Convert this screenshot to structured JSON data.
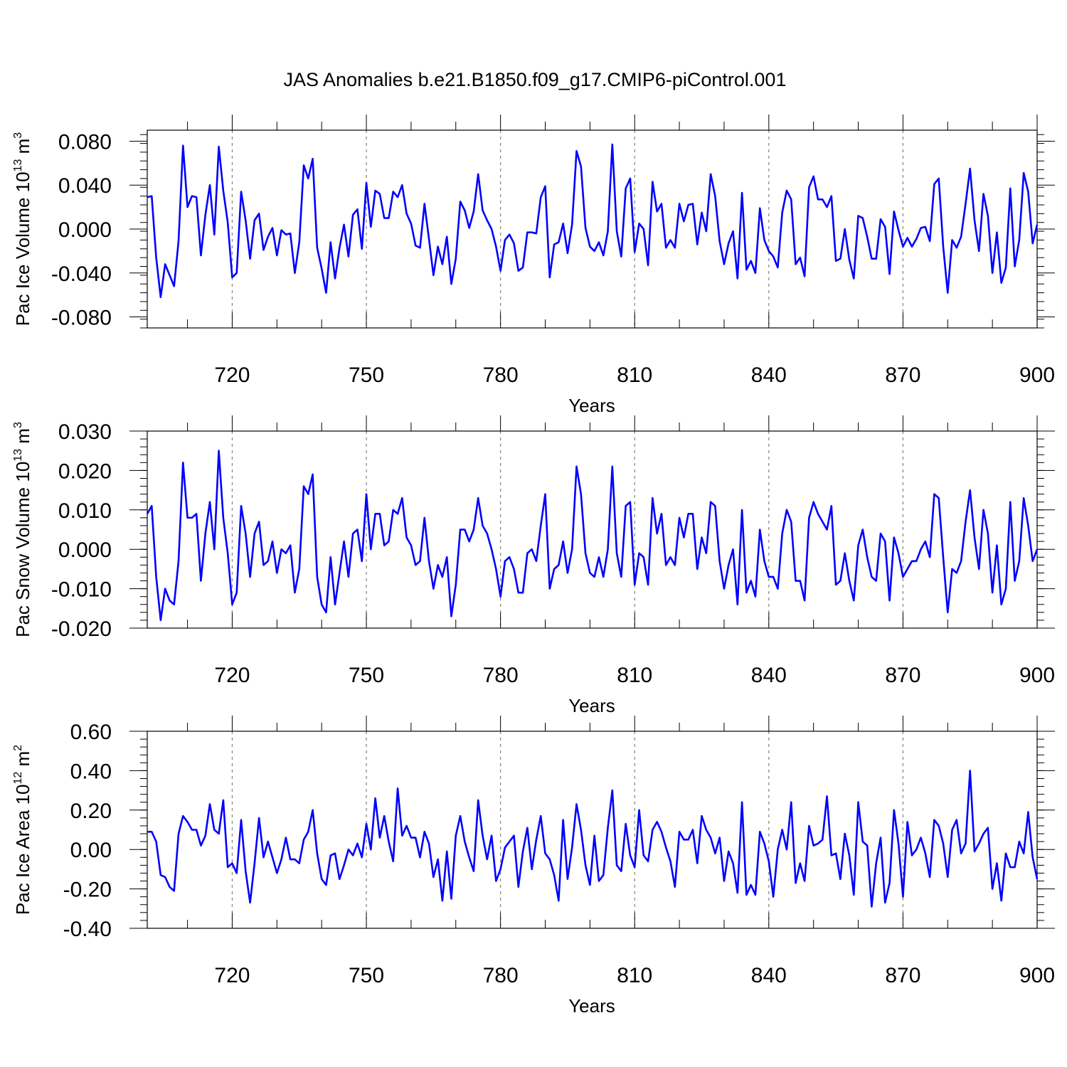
{
  "chart_data": {
    "type": "line",
    "title": "JAS Anomalies b.e21.B1850.f09_g17.CMIP6-piControl.001",
    "line_color": "#0000ff",
    "grid_color": "#808080",
    "xlim": [
      701,
      900
    ],
    "x_start": 701,
    "x_tick_values": [
      720,
      750,
      780,
      810,
      840,
      870,
      900
    ],
    "x_tick_labels": [
      "720",
      "750",
      "780",
      "810",
      "840",
      "870",
      "900"
    ],
    "dashed_gridlines_at": [
      720,
      750,
      780,
      810,
      840,
      870
    ],
    "panels": [
      {
        "name": "ice-volume",
        "ylabel_prefix": "Pac Ice Volume 10",
        "ylabel_exp": "13",
        "ylabel_unit": " m",
        "ylabel_unit_exp": "3",
        "xlabel": "Years",
        "ylim": [
          -0.09,
          0.09
        ],
        "y_tick_values": [
          -0.08,
          -0.04,
          0.0,
          0.04,
          0.08
        ],
        "y_tick_labels": [
          "-0.080",
          "-0.040",
          "0.000",
          "0.040",
          "0.080"
        ],
        "values": [
          0.029,
          0.03,
          -0.026,
          -0.062,
          -0.032,
          -0.042,
          -0.052,
          -0.011,
          0.076,
          0.02,
          0.03,
          0.029,
          -0.024,
          0.013,
          0.04,
          -0.005,
          0.075,
          0.035,
          0.006,
          -0.044,
          -0.04,
          0.034,
          0.008,
          -0.027,
          0.008,
          0.014,
          -0.019,
          -0.007,
          0.001,
          -0.024,
          -0.001,
          -0.005,
          -0.004,
          -0.04,
          -0.012,
          0.058,
          0.046,
          0.064,
          -0.017,
          -0.036,
          -0.058,
          -0.012,
          -0.045,
          -0.017,
          0.004,
          -0.025,
          0.013,
          0.018,
          -0.018,
          0.042,
          0.002,
          0.035,
          0.032,
          0.01,
          0.01,
          0.034,
          0.029,
          0.04,
          0.014,
          0.005,
          -0.015,
          -0.017,
          0.023,
          -0.009,
          -0.042,
          -0.016,
          -0.032,
          -0.007,
          -0.05,
          -0.027,
          0.025,
          0.017,
          0.001,
          0.016,
          0.05,
          0.017,
          0.008,
          0.0,
          -0.016,
          -0.038,
          -0.01,
          -0.005,
          -0.013,
          -0.038,
          -0.035,
          -0.003,
          -0.003,
          -0.004,
          0.029,
          0.039,
          -0.044,
          -0.014,
          -0.012,
          0.005,
          -0.022,
          0.004,
          0.071,
          0.057,
          0.001,
          -0.016,
          -0.02,
          -0.012,
          -0.024,
          -0.002,
          0.077,
          -0.002,
          -0.025,
          0.037,
          0.046,
          -0.021,
          0.005,
          0.0,
          -0.033,
          0.043,
          0.016,
          0.023,
          -0.017,
          -0.01,
          -0.017,
          0.023,
          0.007,
          0.022,
          0.023,
          -0.014,
          0.015,
          -0.002,
          0.05,
          0.03,
          -0.011,
          -0.032,
          -0.013,
          -0.002,
          -0.045,
          0.033,
          -0.037,
          -0.029,
          -0.04,
          0.019,
          -0.01,
          -0.02,
          -0.025,
          -0.035,
          0.015,
          0.035,
          0.027,
          -0.032,
          -0.026,
          -0.043,
          0.038,
          0.048,
          0.027,
          0.027,
          0.02,
          0.03,
          -0.029,
          -0.027,
          0.0,
          -0.028,
          -0.045,
          0.012,
          0.01,
          -0.007,
          -0.027,
          -0.027,
          0.009,
          0.002,
          -0.041,
          0.016,
          -0.001,
          -0.016,
          -0.008,
          -0.016,
          -0.009,
          0.001,
          0.002,
          -0.011,
          0.041,
          0.046,
          -0.016,
          -0.058,
          -0.01,
          -0.017,
          -0.007,
          0.023,
          0.055,
          0.008,
          -0.02,
          0.032,
          0.012,
          -0.04,
          -0.003,
          -0.049,
          -0.035,
          0.037,
          -0.034,
          -0.01,
          0.051,
          0.034,
          -0.013,
          0.004
        ]
      },
      {
        "name": "snow-volume",
        "ylabel_prefix": "Pac Snow Volume 10",
        "ylabel_exp": "13",
        "ylabel_unit": " m",
        "ylabel_unit_exp": "3",
        "xlabel": "Years",
        "ylim": [
          -0.02,
          0.03
        ],
        "y_tick_values": [
          -0.02,
          -0.01,
          0.0,
          0.01,
          0.02,
          0.03
        ],
        "y_tick_labels": [
          "-0.020",
          "-0.010",
          "0.000",
          "0.010",
          "0.020",
          "0.030"
        ],
        "values": [
          0.009,
          0.011,
          -0.007,
          -0.018,
          -0.01,
          -0.013,
          -0.014,
          -0.003,
          0.022,
          0.008,
          0.008,
          0.009,
          -0.008,
          0.004,
          0.012,
          0.0,
          0.025,
          0.008,
          -0.001,
          -0.014,
          -0.011,
          0.011,
          0.004,
          -0.007,
          0.004,
          0.007,
          -0.004,
          -0.003,
          0.002,
          -0.006,
          0.0,
          -0.001,
          0.001,
          -0.011,
          -0.005,
          0.016,
          0.014,
          0.019,
          -0.007,
          -0.014,
          -0.016,
          -0.002,
          -0.014,
          -0.006,
          0.002,
          -0.007,
          0.004,
          0.005,
          -0.003,
          0.014,
          0.0,
          0.009,
          0.009,
          0.001,
          0.002,
          0.01,
          0.009,
          0.013,
          0.003,
          0.001,
          -0.004,
          -0.003,
          0.008,
          -0.003,
          -0.01,
          -0.004,
          -0.007,
          -0.002,
          -0.017,
          -0.009,
          0.005,
          0.005,
          0.002,
          0.005,
          0.013,
          0.006,
          0.004,
          0.0,
          -0.005,
          -0.012,
          -0.003,
          -0.002,
          -0.005,
          -0.011,
          -0.011,
          -0.001,
          0.0,
          -0.003,
          0.006,
          0.014,
          -0.01,
          -0.005,
          -0.004,
          0.002,
          -0.006,
          0.0,
          0.021,
          0.014,
          -0.001,
          -0.006,
          -0.007,
          -0.002,
          -0.007,
          0.0,
          0.021,
          -0.001,
          -0.007,
          0.011,
          0.012,
          -0.009,
          -0.001,
          -0.002,
          -0.009,
          0.013,
          0.004,
          0.009,
          -0.004,
          -0.002,
          -0.004,
          0.008,
          0.003,
          0.009,
          0.009,
          -0.005,
          0.003,
          -0.001,
          0.012,
          0.011,
          -0.003,
          -0.01,
          -0.004,
          0.0,
          -0.014,
          0.01,
          -0.011,
          -0.008,
          -0.012,
          0.005,
          -0.003,
          -0.007,
          -0.007,
          -0.01,
          0.004,
          0.01,
          0.007,
          -0.008,
          -0.008,
          -0.013,
          0.008,
          0.012,
          0.009,
          0.007,
          0.005,
          0.011,
          -0.009,
          -0.008,
          -0.001,
          -0.008,
          -0.013,
          0.001,
          0.005,
          -0.002,
          -0.007,
          -0.008,
          0.004,
          0.002,
          -0.013,
          0.003,
          -0.001,
          -0.007,
          -0.005,
          -0.003,
          -0.003,
          0.0,
          0.002,
          -0.002,
          0.014,
          0.013,
          -0.002,
          -0.016,
          -0.005,
          -0.006,
          -0.003,
          0.007,
          0.015,
          0.003,
          -0.005,
          0.01,
          0.004,
          -0.011,
          0.001,
          -0.014,
          -0.01,
          0.012,
          -0.008,
          -0.003,
          0.013,
          0.006,
          -0.003,
          0.0
        ]
      },
      {
        "name": "ice-area",
        "ylabel_prefix": "Pac Ice Area 10",
        "ylabel_exp": "12",
        "ylabel_unit": " m",
        "ylabel_unit_exp": "2",
        "xlabel": "Years",
        "ylim": [
          -0.4,
          0.6
        ],
        "y_tick_values": [
          -0.4,
          -0.2,
          0.0,
          0.2,
          0.4,
          0.6
        ],
        "y_tick_labels": [
          "-0.40",
          "-0.20",
          "0.00",
          "0.20",
          "0.40",
          "0.60"
        ],
        "values": [
          0.09,
          0.09,
          0.04,
          -0.13,
          -0.14,
          -0.19,
          -0.21,
          0.08,
          0.17,
          0.14,
          0.1,
          0.1,
          0.02,
          0.07,
          0.23,
          0.1,
          0.08,
          0.25,
          -0.09,
          -0.07,
          -0.12,
          0.15,
          -0.11,
          -0.27,
          -0.07,
          0.16,
          -0.04,
          0.04,
          -0.04,
          -0.12,
          -0.05,
          0.06,
          -0.05,
          -0.05,
          -0.07,
          0.05,
          0.09,
          0.2,
          -0.02,
          -0.15,
          -0.18,
          -0.03,
          -0.02,
          -0.15,
          -0.08,
          0.0,
          -0.03,
          0.03,
          -0.04,
          0.13,
          0.0,
          0.26,
          0.06,
          0.17,
          0.04,
          -0.06,
          0.31,
          0.07,
          0.12,
          0.06,
          0.06,
          -0.04,
          0.09,
          0.03,
          -0.14,
          -0.05,
          -0.26,
          -0.01,
          -0.25,
          0.07,
          0.17,
          0.04,
          -0.04,
          -0.11,
          0.25,
          0.07,
          -0.05,
          0.07,
          -0.16,
          -0.1,
          0.01,
          0.04,
          0.07,
          -0.19,
          -0.01,
          0.11,
          -0.1,
          0.05,
          0.17,
          -0.02,
          -0.05,
          -0.13,
          -0.26,
          0.15,
          -0.15,
          0.01,
          0.23,
          0.1,
          -0.08,
          -0.18,
          0.07,
          -0.16,
          -0.13,
          0.11,
          0.3,
          -0.08,
          -0.11,
          0.13,
          -0.03,
          -0.09,
          0.2,
          -0.03,
          -0.06,
          0.1,
          0.14,
          0.09,
          0.01,
          -0.06,
          -0.19,
          0.09,
          0.05,
          0.05,
          0.1,
          -0.07,
          0.17,
          0.1,
          0.06,
          -0.02,
          0.06,
          -0.16,
          -0.01,
          -0.07,
          -0.22,
          0.24,
          -0.23,
          -0.18,
          -0.23,
          0.09,
          0.03,
          -0.06,
          -0.24,
          0.0,
          0.1,
          0.0,
          0.24,
          -0.17,
          -0.07,
          -0.16,
          0.12,
          0.02,
          0.03,
          0.05,
          0.27,
          -0.03,
          -0.02,
          -0.15,
          0.08,
          -0.03,
          -0.23,
          0.24,
          0.04,
          0.02,
          -0.29,
          -0.07,
          0.06,
          -0.27,
          -0.17,
          0.2,
          0.03,
          -0.24,
          0.14,
          -0.03,
          0.0,
          0.06,
          -0.02,
          -0.14,
          0.15,
          0.12,
          0.03,
          -0.14,
          0.1,
          0.15,
          -0.02,
          0.03,
          0.4,
          -0.01,
          0.03,
          0.08,
          0.11,
          -0.2,
          -0.07,
          -0.26,
          -0.02,
          -0.09,
          -0.09,
          0.04,
          -0.02,
          0.19,
          -0.04,
          -0.15
        ]
      }
    ]
  }
}
